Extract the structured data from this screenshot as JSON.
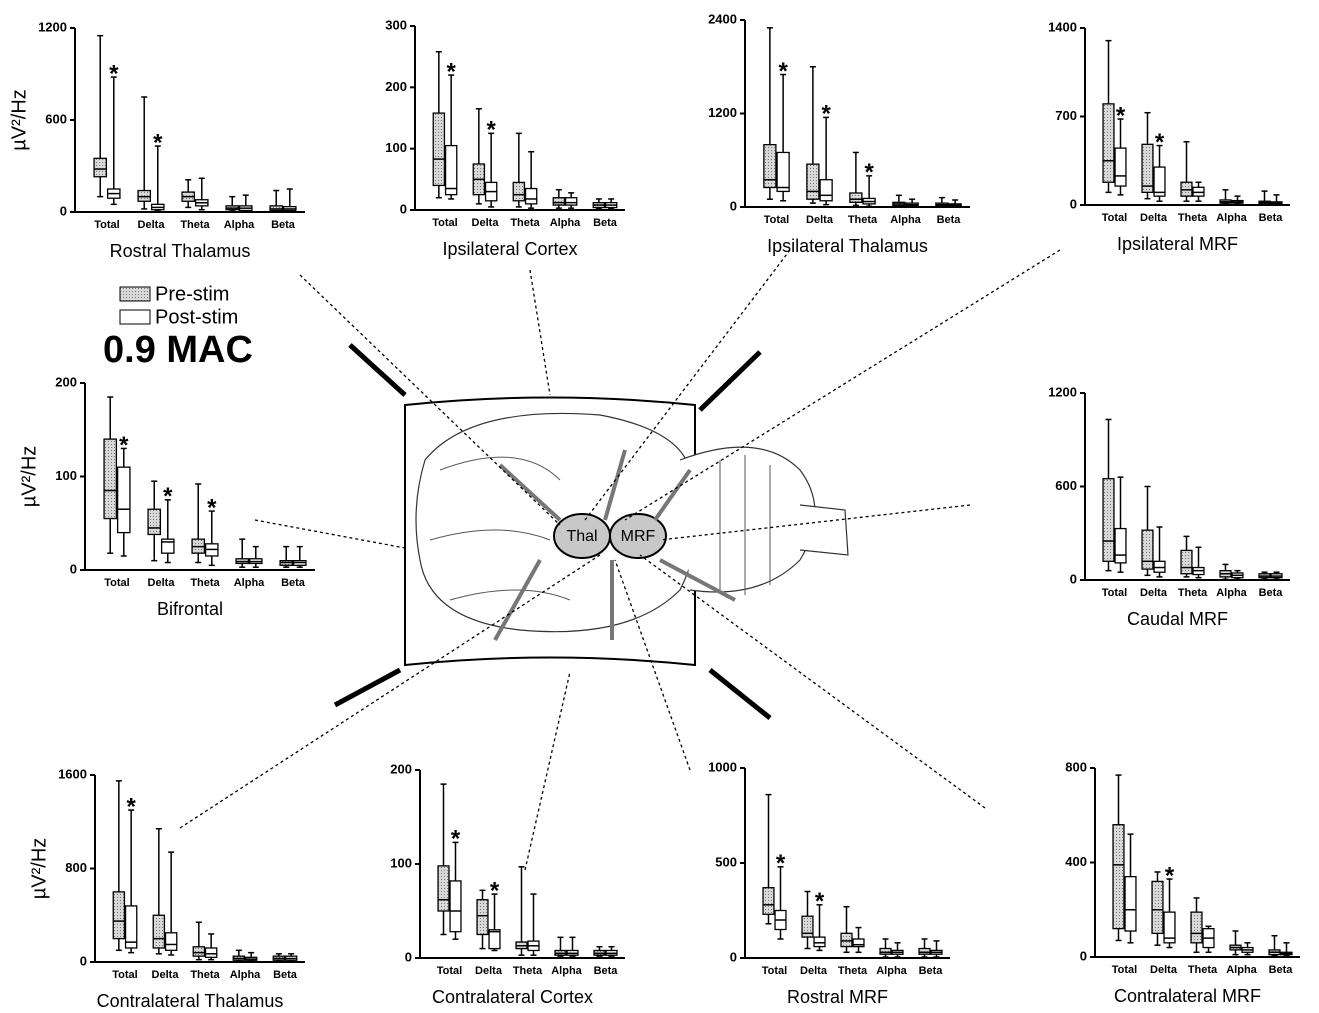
{
  "legend": {
    "entries": [
      {
        "name": "Pre-stim",
        "color": "#c4c4c4"
      },
      {
        "name": "Post-stim",
        "color": "#ffffff"
      }
    ],
    "label": "0.9 MAC"
  },
  "star_label": "*",
  "diagram": {
    "labels": [
      "Thal",
      "MRF"
    ]
  },
  "chart_data": [
    {
      "type": "box",
      "title": "Rostral Thalamus",
      "ylabel": "µV²/Hz",
      "categories": [
        "Total",
        "Delta",
        "Theta",
        "Alpha",
        "Beta"
      ],
      "ylim": [
        0,
        1200
      ],
      "yticks": [
        0,
        600,
        1200
      ],
      "stars": [
        [
          0,
          1
        ],
        [
          1,
          1
        ]
      ],
      "series": [
        {
          "values": [
            [
              100,
              230,
              280,
              350,
              1150
            ],
            [
              20,
              70,
              100,
              140,
              750
            ],
            [
              30,
              70,
              100,
              130,
              210
            ],
            [
              5,
              15,
              25,
              40,
              100
            ],
            [
              5,
              10,
              20,
              40,
              140
            ]
          ]
        },
        {
          "values": [
            [
              50,
              90,
              120,
              150,
              880
            ],
            [
              5,
              15,
              30,
              50,
              430
            ],
            [
              15,
              40,
              60,
              80,
              220
            ],
            [
              5,
              10,
              25,
              40,
              110
            ],
            [
              5,
              10,
              20,
              35,
              150
            ]
          ]
        }
      ]
    },
    {
      "type": "box",
      "title": "Ipsilateral Cortex",
      "categories": [
        "Total",
        "Delta",
        "Theta",
        "Alpha",
        "Beta"
      ],
      "ylim": [
        0,
        300
      ],
      "yticks": [
        0,
        100,
        200,
        300
      ],
      "stars": [
        [
          0,
          1
        ],
        [
          1,
          1
        ]
      ],
      "series": [
        {
          "values": [
            [
              20,
              40,
              83,
              158,
              258
            ],
            [
              10,
              25,
              50,
              75,
              165
            ],
            [
              5,
              15,
              25,
              45,
              125
            ],
            [
              3,
              8,
              12,
              20,
              33
            ],
            [
              2,
              4,
              8,
              12,
              18
            ]
          ]
        },
        {
          "values": [
            [
              18,
              25,
              35,
              105,
              220
            ],
            [
              5,
              15,
              30,
              45,
              125
            ],
            [
              3,
              10,
              18,
              35,
              95
            ],
            [
              3,
              8,
              12,
              20,
              28
            ],
            [
              2,
              4,
              8,
              12,
              18
            ]
          ]
        }
      ]
    },
    {
      "type": "box",
      "title": "Ipsilateral Thalamus",
      "categories": [
        "Total",
        "Delta",
        "Theta",
        "Alpha",
        "Beta"
      ],
      "ylim": [
        0,
        2400
      ],
      "yticks": [
        0,
        1200,
        2400
      ],
      "stars": [
        [
          0,
          1
        ],
        [
          1,
          1
        ],
        [
          2,
          1
        ]
      ],
      "series": [
        {
          "values": [
            [
              100,
              250,
              350,
              800,
              2300
            ],
            [
              50,
              100,
              200,
              550,
              1800
            ],
            [
              20,
              60,
              100,
              180,
              700
            ],
            [
              5,
              20,
              40,
              60,
              150
            ],
            [
              5,
              20,
              30,
              50,
              120
            ]
          ]
        },
        {
          "values": [
            [
              80,
              200,
              250,
              700,
              1700
            ],
            [
              30,
              80,
              150,
              350,
              1150
            ],
            [
              10,
              40,
              70,
              110,
              400
            ],
            [
              5,
              15,
              30,
              50,
              100
            ],
            [
              5,
              15,
              25,
              40,
              90
            ]
          ]
        }
      ]
    },
    {
      "type": "box",
      "title": "Ipsilateral MRF",
      "categories": [
        "Total",
        "Delta",
        "Theta",
        "Alpha",
        "Beta"
      ],
      "ylim": [
        0,
        1400
      ],
      "yticks": [
        0,
        700,
        1400
      ],
      "stars": [
        [
          0,
          1
        ],
        [
          1,
          1
        ]
      ],
      "series": [
        {
          "values": [
            [
              100,
              180,
              350,
              800,
              1300
            ],
            [
              50,
              100,
              150,
              480,
              730
            ],
            [
              30,
              70,
              120,
              180,
              500
            ],
            [
              5,
              15,
              25,
              40,
              120
            ],
            [
              3,
              10,
              20,
              30,
              110
            ]
          ]
        },
        {
          "values": [
            [
              80,
              150,
              230,
              450,
              680
            ],
            [
              30,
              70,
              100,
              300,
              470
            ],
            [
              30,
              70,
              100,
              140,
              180
            ],
            [
              5,
              15,
              25,
              35,
              70
            ],
            [
              3,
              10,
              15,
              25,
              80
            ]
          ]
        }
      ]
    },
    {
      "type": "box",
      "title": "Bifrontal",
      "ylabel": "µV²/Hz",
      "categories": [
        "Total",
        "Delta",
        "Theta",
        "Alpha",
        "Beta"
      ],
      "ylim": [
        0,
        200
      ],
      "yticks": [
        0,
        100,
        200
      ],
      "stars": [
        [
          0,
          1
        ],
        [
          1,
          1
        ],
        [
          2,
          1
        ]
      ],
      "series": [
        {
          "values": [
            [
              18,
              55,
              85,
              140,
              185
            ],
            [
              10,
              38,
              45,
              65,
              95
            ],
            [
              8,
              18,
              25,
              33,
              92
            ],
            [
              3,
              7,
              9,
              12,
              33
            ],
            [
              3,
              5,
              8,
              10,
              25
            ]
          ]
        },
        {
          "values": [
            [
              15,
              40,
              65,
              110,
              130
            ],
            [
              8,
              18,
              30,
              33,
              75
            ],
            [
              5,
              15,
              22,
              28,
              63
            ],
            [
              3,
              7,
              9,
              12,
              25
            ],
            [
              3,
              5,
              8,
              10,
              25
            ]
          ]
        }
      ]
    },
    {
      "type": "box",
      "title": "Caudal MRF",
      "categories": [
        "Total",
        "Delta",
        "Theta",
        "Alpha",
        "Beta"
      ],
      "ylim": [
        0,
        1200
      ],
      "yticks": [
        0,
        600,
        1200
      ],
      "stars": [],
      "series": [
        {
          "values": [
            [
              60,
              120,
              250,
              650,
              1030
            ],
            [
              30,
              70,
              120,
              320,
              600
            ],
            [
              20,
              40,
              80,
              190,
              280
            ],
            [
              5,
              20,
              40,
              60,
              100
            ],
            [
              5,
              15,
              25,
              40,
              50
            ]
          ]
        },
        {
          "values": [
            [
              50,
              110,
              160,
              330,
              660
            ],
            [
              20,
              50,
              80,
              120,
              340
            ],
            [
              15,
              35,
              60,
              80,
              210
            ],
            [
              5,
              15,
              30,
              45,
              60
            ],
            [
              5,
              15,
              25,
              40,
              50
            ]
          ]
        }
      ]
    },
    {
      "type": "box",
      "title": "Contralateral Thalamus",
      "ylabel": "µV²/Hz",
      "categories": [
        "Total",
        "Delta",
        "Theta",
        "Alpha",
        "Beta"
      ],
      "ylim": [
        0,
        1600
      ],
      "yticks": [
        0,
        800,
        1600
      ],
      "stars": [
        [
          0,
          1
        ]
      ],
      "series": [
        {
          "values": [
            [
              100,
              200,
              350,
              600,
              1550
            ],
            [
              70,
              120,
              200,
              400,
              1140
            ],
            [
              20,
              50,
              80,
              130,
              340
            ],
            [
              5,
              15,
              30,
              50,
              100
            ],
            [
              5,
              15,
              30,
              50,
              70
            ]
          ]
        },
        {
          "values": [
            [
              80,
              120,
              170,
              480,
              1300
            ],
            [
              60,
              100,
              150,
              250,
              940
            ],
            [
              20,
              40,
              70,
              120,
              240
            ],
            [
              5,
              15,
              25,
              40,
              80
            ],
            [
              5,
              15,
              30,
              50,
              70
            ]
          ]
        }
      ]
    },
    {
      "type": "box",
      "title": "Contralateral Cortex",
      "categories": [
        "Total",
        "Delta",
        "Theta",
        "Alpha",
        "Beta"
      ],
      "ylim": [
        0,
        200
      ],
      "yticks": [
        0,
        100,
        200
      ],
      "stars": [
        [
          0,
          1
        ],
        [
          1,
          1
        ]
      ],
      "series": [
        {
          "values": [
            [
              25,
              50,
              62,
              98,
              185
            ],
            [
              10,
              25,
              45,
              62,
              72
            ],
            [
              3,
              10,
              13,
              17,
              97
            ],
            [
              2,
              3,
              5,
              8,
              22
            ],
            [
              2,
              3,
              5,
              8,
              12
            ]
          ]
        },
        {
          "values": [
            [
              20,
              28,
              50,
              82,
              123
            ],
            [
              8,
              10,
              28,
              30,
              68
            ],
            [
              3,
              8,
              13,
              18,
              68
            ],
            [
              2,
              3,
              5,
              8,
              22
            ],
            [
              2,
              3,
              5,
              8,
              12
            ]
          ]
        }
      ]
    },
    {
      "type": "box",
      "title": "Rostral MRF",
      "categories": [
        "Total",
        "Delta",
        "Theta",
        "Alpha",
        "Beta"
      ],
      "ylim": [
        0,
        1000
      ],
      "yticks": [
        0,
        500,
        1000
      ],
      "stars": [
        [
          0,
          1
        ],
        [
          1,
          1
        ]
      ],
      "series": [
        {
          "values": [
            [
              180,
              230,
              280,
              370,
              860
            ],
            [
              50,
              110,
              130,
              220,
              350
            ],
            [
              30,
              60,
              90,
              130,
              270
            ],
            [
              5,
              20,
              30,
              50,
              100
            ],
            [
              5,
              20,
              30,
              50,
              100
            ]
          ]
        },
        {
          "values": [
            [
              100,
              150,
              200,
              250,
              480
            ],
            [
              40,
              60,
              80,
              110,
              280
            ],
            [
              30,
              60,
              70,
              100,
              160
            ],
            [
              5,
              20,
              30,
              40,
              80
            ],
            [
              5,
              20,
              30,
              40,
              90
            ]
          ]
        }
      ]
    },
    {
      "type": "box",
      "title": "Contralateral MRF",
      "categories": [
        "Total",
        "Delta",
        "Theta",
        "Alpha",
        "Beta"
      ],
      "ylim": [
        0,
        800
      ],
      "yticks": [
        0,
        400,
        800
      ],
      "stars": [
        [
          1,
          1
        ]
      ],
      "series": [
        {
          "values": [
            [
              70,
              120,
              390,
              560,
              770
            ],
            [
              50,
              100,
              200,
              320,
              360
            ],
            [
              20,
              60,
              100,
              190,
              250
            ],
            [
              10,
              30,
              40,
              50,
              110
            ],
            [
              5,
              10,
              20,
              30,
              90
            ]
          ]
        },
        {
          "values": [
            [
              60,
              110,
              200,
              340,
              520
            ],
            [
              40,
              60,
              80,
              190,
              330
            ],
            [
              20,
              40,
              80,
              120,
              130
            ],
            [
              10,
              20,
              30,
              40,
              60
            ],
            [
              5,
              10,
              15,
              20,
              60
            ]
          ]
        }
      ]
    }
  ]
}
